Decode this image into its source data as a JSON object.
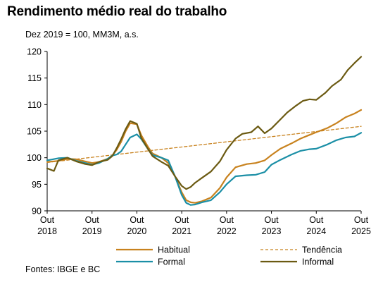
{
  "chart_data": {
    "type": "line",
    "title": "Rendimento médio real do trabalho",
    "subtitle": "Dez 2019 = 100, MM3M, a.s.",
    "source": "Fontes:  IBGE e BC",
    "ylim": [
      90,
      120
    ],
    "yticks": [
      90,
      95,
      100,
      105,
      110,
      115,
      120
    ],
    "xlim": [
      2018.75,
      2025.75
    ],
    "xticks": [
      {
        "x": 2018.75,
        "line1": "Out",
        "line2": "2018"
      },
      {
        "x": 2019.75,
        "line1": "Out",
        "line2": "2019"
      },
      {
        "x": 2020.75,
        "line1": "Out",
        "line2": "2020"
      },
      {
        "x": 2021.75,
        "line1": "Out",
        "line2": "2021"
      },
      {
        "x": 2022.75,
        "line1": "Out",
        "line2": "2022"
      },
      {
        "x": 2023.75,
        "line1": "Out",
        "line2": "2023"
      },
      {
        "x": 2024.75,
        "line1": "Out",
        "line2": "2024"
      },
      {
        "x": 2025.75,
        "line1": "Out",
        "line2": "2025"
      }
    ],
    "grid": false,
    "legend_position": "bottom",
    "series": [
      {
        "name": "Habitual",
        "color": "#c8821e",
        "dashed": false,
        "x": [
          2018.75,
          2019.0,
          2019.2,
          2019.4,
          2019.6,
          2019.75,
          2019.9,
          2020.1,
          2020.2,
          2020.3,
          2020.4,
          2020.5,
          2020.6,
          2020.75,
          2020.85,
          2021.0,
          2021.1,
          2021.3,
          2021.45,
          2021.6,
          2021.75,
          2021.85,
          2021.95,
          2022.05,
          2022.2,
          2022.4,
          2022.6,
          2022.75,
          2022.95,
          2023.2,
          2023.4,
          2023.6,
          2023.75,
          2023.95,
          2024.2,
          2024.4,
          2024.6,
          2024.75,
          2025.0,
          2025.2,
          2025.4,
          2025.6,
          2025.75
        ],
        "values": [
          99.2,
          99.4,
          99.8,
          99.7,
          99.3,
          99.0,
          99.2,
          99.8,
          100.4,
          101.5,
          103.0,
          105.0,
          106.5,
          106.3,
          104.2,
          102.0,
          100.8,
          100.0,
          99.0,
          96.5,
          93.5,
          92.0,
          91.6,
          91.5,
          91.8,
          92.5,
          94.3,
          96.3,
          98.2,
          98.8,
          99.0,
          99.5,
          100.5,
          101.7,
          102.7,
          103.6,
          104.3,
          104.8,
          105.6,
          106.5,
          107.6,
          108.3,
          109.0
        ]
      },
      {
        "name": "Tendência",
        "color": "#c8821e",
        "dashed": true,
        "x": [
          2018.75,
          2025.75
        ],
        "values": [
          99.1,
          105.9
        ]
      },
      {
        "name": "Formal",
        "color": "#1b8fa6",
        "dashed": false,
        "x": [
          2018.75,
          2019.0,
          2019.2,
          2019.4,
          2019.6,
          2019.75,
          2019.9,
          2020.1,
          2020.2,
          2020.3,
          2020.4,
          2020.5,
          2020.6,
          2020.75,
          2020.85,
          2021.0,
          2021.1,
          2021.3,
          2021.45,
          2021.6,
          2021.75,
          2021.85,
          2021.95,
          2022.05,
          2022.2,
          2022.4,
          2022.6,
          2022.75,
          2022.95,
          2023.2,
          2023.4,
          2023.6,
          2023.75,
          2023.95,
          2024.2,
          2024.4,
          2024.6,
          2024.75,
          2025.0,
          2025.2,
          2025.4,
          2025.6,
          2025.75
        ],
        "values": [
          99.5,
          99.9,
          100.0,
          99.4,
          99.0,
          98.7,
          99.0,
          99.8,
          100.4,
          100.6,
          101.2,
          102.5,
          103.8,
          104.4,
          103.5,
          101.6,
          100.5,
          100.0,
          99.5,
          96.5,
          93.0,
          91.5,
          91.1,
          91.2,
          91.6,
          92.0,
          93.5,
          95.0,
          96.5,
          96.7,
          96.8,
          97.3,
          98.7,
          99.6,
          100.6,
          101.3,
          101.6,
          101.7,
          102.5,
          103.3,
          103.8,
          104.0,
          104.7
        ]
      },
      {
        "name": "Informal",
        "color": "#6b5a12",
        "dashed": false,
        "x": [
          2018.75,
          2018.9,
          2019.0,
          2019.2,
          2019.4,
          2019.6,
          2019.75,
          2019.9,
          2020.1,
          2020.2,
          2020.3,
          2020.4,
          2020.5,
          2020.6,
          2020.75,
          2020.85,
          2021.0,
          2021.1,
          2021.3,
          2021.45,
          2021.6,
          2021.75,
          2021.85,
          2021.95,
          2022.05,
          2022.2,
          2022.4,
          2022.6,
          2022.75,
          2022.95,
          2023.1,
          2023.3,
          2023.45,
          2023.6,
          2023.75,
          2023.95,
          2024.1,
          2024.3,
          2024.45,
          2024.6,
          2024.75,
          2024.95,
          2025.1,
          2025.3,
          2025.45,
          2025.6,
          2025.75
        ],
        "values": [
          98.0,
          97.5,
          99.5,
          100.0,
          99.3,
          98.8,
          98.6,
          99.2,
          99.6,
          100.3,
          101.8,
          103.5,
          105.4,
          106.9,
          106.4,
          103.7,
          101.6,
          100.3,
          99.2,
          98.5,
          96.5,
          94.7,
          94.1,
          94.5,
          95.3,
          96.2,
          97.4,
          99.3,
          101.5,
          103.6,
          104.5,
          104.8,
          105.9,
          104.6,
          105.5,
          107.2,
          108.5,
          109.8,
          110.7,
          111.0,
          110.9,
          112.2,
          113.5,
          114.7,
          116.5,
          117.8,
          119.0
        ]
      }
    ]
  }
}
